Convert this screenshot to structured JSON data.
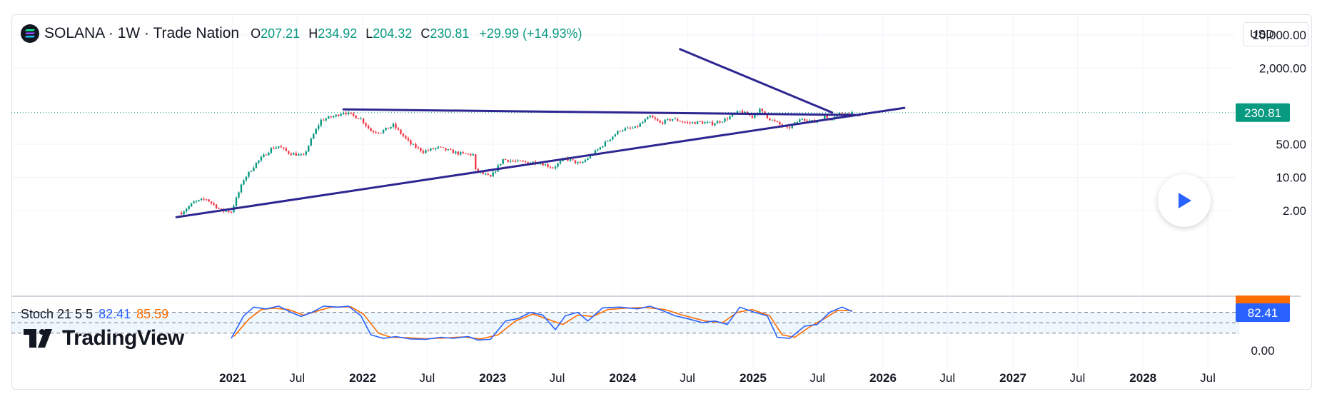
{
  "header": {
    "symbol": "SOLANA · 1W · Trade Nation",
    "o_label": "O",
    "o_value": "207.21",
    "h_label": "H",
    "h_value": "234.92",
    "l_label": "L",
    "l_value": "204.32",
    "c_label": "C",
    "c_value": "230.81",
    "change": "+29.99 (+14.93%)",
    "logo_icon": "solana-logo-icon"
  },
  "currency_selector": "USD",
  "play_button_icon": "play-icon",
  "brand": "TradingView",
  "colors": {
    "up": "#089981",
    "down": "#f23645",
    "trendline": "#2e2690",
    "k": "#2962ff",
    "d": "#ff6d00"
  },
  "chart_data": {
    "type": "candlestick",
    "interval": "1W",
    "yscale": "log",
    "y_ticks": [
      "10,000.00",
      "2,000.00",
      "50.00",
      "10.00",
      "2.00"
    ],
    "y_tick_values": [
      10000,
      2000,
      50,
      10,
      2
    ],
    "last_price": 230.81,
    "last_price_label": "230.81",
    "x_ticks": [
      "2021",
      "Jul",
      "2022",
      "Jul",
      "2023",
      "Jul",
      "2024",
      "Jul",
      "2025",
      "Jul",
      "2026",
      "Jul",
      "2027",
      "Jul",
      "2028",
      "Jul"
    ],
    "price_path": [
      [
        "2020-08-10",
        1.8
      ],
      [
        "2020-09-14",
        3.0
      ],
      [
        "2020-10-19",
        3.5
      ],
      [
        "2020-11-30",
        2.0
      ],
      [
        "2020-12-28",
        1.9
      ],
      [
        "2021-02-01",
        9
      ],
      [
        "2021-03-08",
        20
      ],
      [
        "2021-04-19",
        40
      ],
      [
        "2021-05-10",
        45
      ],
      [
        "2021-06-07",
        33
      ],
      [
        "2021-07-19",
        28
      ],
      [
        "2021-08-16",
        80
      ],
      [
        "2021-09-06",
        160
      ],
      [
        "2021-10-18",
        200
      ],
      [
        "2021-11-08",
        240
      ],
      [
        "2021-12-27",
        170
      ],
      [
        "2022-01-24",
        95
      ],
      [
        "2022-02-21",
        90
      ],
      [
        "2022-03-28",
        125
      ],
      [
        "2022-05-16",
        50
      ],
      [
        "2022-06-20",
        35
      ],
      [
        "2022-08-01",
        42
      ],
      [
        "2022-09-26",
        32
      ],
      [
        "2022-11-07",
        30
      ],
      [
        "2022-11-14",
        14
      ],
      [
        "2022-12-26",
        10
      ],
      [
        "2023-01-30",
        24
      ],
      [
        "2023-03-13",
        21
      ],
      [
        "2023-05-08",
        21
      ],
      [
        "2023-06-19",
        16
      ],
      [
        "2023-07-24",
        25
      ],
      [
        "2023-09-04",
        19
      ],
      [
        "2023-10-23",
        38
      ],
      [
        "2023-11-20",
        60
      ],
      [
        "2023-12-25",
        100
      ],
      [
        "2024-02-05",
        110
      ],
      [
        "2024-03-18",
        190
      ],
      [
        "2024-04-15",
        140
      ],
      [
        "2024-05-20",
        170
      ],
      [
        "2024-07-01",
        140
      ],
      [
        "2024-08-05",
        145
      ],
      [
        "2024-09-09",
        135
      ],
      [
        "2024-10-14",
        165
      ],
      [
        "2024-11-25",
        245
      ],
      [
        "2024-12-30",
        190
      ],
      [
        "2025-01-20",
        260
      ],
      [
        "2025-02-17",
        170
      ],
      [
        "2025-04-07",
        105
      ],
      [
        "2025-05-19",
        175
      ],
      [
        "2025-06-23",
        145
      ],
      [
        "2025-07-21",
        190
      ],
      [
        "2025-08-04",
        170
      ],
      [
        "2025-08-25",
        215
      ],
      [
        "2025-09-15",
        240
      ],
      [
        "2025-09-29",
        205
      ],
      [
        "2025-10-06",
        230.81
      ]
    ],
    "trendlines": [
      {
        "from": [
          "2020-07-27",
          1.45
        ],
        "to": [
          "2026-03-02",
          290
        ]
      },
      {
        "from": [
          "2021-11-08",
          270
        ],
        "to": [
          "2025-10-27",
          205
        ]
      },
      {
        "from": [
          "2024-06-10",
          5000
        ],
        "to": [
          "2025-08-11",
          232
        ]
      }
    ]
  },
  "stoch": {
    "legend": "Stoch 21 5 5",
    "k_value": "82.41",
    "d_value": "85.59",
    "k_label": "82.41",
    "zero_label": "0.00",
    "levels": [
      80,
      50,
      20
    ],
    "k_points": [
      [
        "2020-12-28",
        5
      ],
      [
        "2021-02-01",
        70
      ],
      [
        "2021-03-01",
        95
      ],
      [
        "2021-04-05",
        90
      ],
      [
        "2021-05-10",
        98
      ],
      [
        "2021-06-14",
        80
      ],
      [
        "2021-07-12",
        68
      ],
      [
        "2021-08-16",
        82
      ],
      [
        "2021-09-13",
        98
      ],
      [
        "2021-10-25",
        95
      ],
      [
        "2021-11-22",
        98
      ],
      [
        "2021-12-27",
        70
      ],
      [
        "2022-01-24",
        15
      ],
      [
        "2022-02-28",
        5
      ],
      [
        "2022-04-04",
        10
      ],
      [
        "2022-05-16",
        3
      ],
      [
        "2022-06-27",
        2
      ],
      [
        "2022-08-08",
        8
      ],
      [
        "2022-09-12",
        5
      ],
      [
        "2022-10-24",
        10
      ],
      [
        "2022-11-21",
        0
      ],
      [
        "2022-12-26",
        2
      ],
      [
        "2023-02-06",
        55
      ],
      [
        "2023-03-13",
        62
      ],
      [
        "2023-04-17",
        80
      ],
      [
        "2023-05-22",
        72
      ],
      [
        "2023-06-26",
        30
      ],
      [
        "2023-07-24",
        70
      ],
      [
        "2023-08-28",
        80
      ],
      [
        "2023-09-25",
        55
      ],
      [
        "2023-11-06",
        93
      ],
      [
        "2023-12-25",
        95
      ],
      [
        "2024-02-12",
        90
      ],
      [
        "2024-03-18",
        98
      ],
      [
        "2024-04-22",
        85
      ],
      [
        "2024-05-27",
        70
      ],
      [
        "2024-07-08",
        60
      ],
      [
        "2024-08-12",
        50
      ],
      [
        "2024-09-16",
        55
      ],
      [
        "2024-10-21",
        45
      ],
      [
        "2024-11-25",
        95
      ],
      [
        "2025-01-06",
        80
      ],
      [
        "2025-02-10",
        70
      ],
      [
        "2025-03-10",
        8
      ],
      [
        "2025-04-14",
        5
      ],
      [
        "2025-05-26",
        40
      ],
      [
        "2025-06-30",
        45
      ],
      [
        "2025-08-04",
        80
      ],
      [
        "2025-09-08",
        95
      ],
      [
        "2025-10-06",
        82.41
      ]
    ],
    "d_points": [
      [
        "2021-01-04",
        10
      ],
      [
        "2021-02-15",
        60
      ],
      [
        "2021-03-22",
        88
      ],
      [
        "2021-04-26",
        92
      ],
      [
        "2021-06-07",
        88
      ],
      [
        "2021-07-19",
        72
      ],
      [
        "2021-08-30",
        85
      ],
      [
        "2021-10-04",
        95
      ],
      [
        "2021-11-29",
        96
      ],
      [
        "2022-01-03",
        75
      ],
      [
        "2022-02-14",
        20
      ],
      [
        "2022-03-21",
        8
      ],
      [
        "2022-05-02",
        7
      ],
      [
        "2022-06-27",
        4
      ],
      [
        "2022-08-22",
        6
      ],
      [
        "2022-10-10",
        9
      ],
      [
        "2022-11-28",
        3
      ],
      [
        "2023-01-16",
        15
      ],
      [
        "2023-03-06",
        55
      ],
      [
        "2023-04-24",
        75
      ],
      [
        "2023-06-05",
        60
      ],
      [
        "2023-07-17",
        45
      ],
      [
        "2023-08-28",
        72
      ],
      [
        "2023-10-09",
        68
      ],
      [
        "2023-11-20",
        88
      ],
      [
        "2024-01-08",
        92
      ],
      [
        "2024-03-04",
        94
      ],
      [
        "2024-04-29",
        88
      ],
      [
        "2024-06-17",
        72
      ],
      [
        "2024-08-19",
        55
      ],
      [
        "2024-10-07",
        50
      ],
      [
        "2024-11-18",
        80
      ],
      [
        "2024-12-30",
        88
      ],
      [
        "2025-02-17",
        70
      ],
      [
        "2025-03-24",
        15
      ],
      [
        "2025-04-28",
        8
      ],
      [
        "2025-06-09",
        38
      ],
      [
        "2025-07-21",
        62
      ],
      [
        "2025-08-25",
        85
      ],
      [
        "2025-10-06",
        85.59
      ]
    ]
  }
}
